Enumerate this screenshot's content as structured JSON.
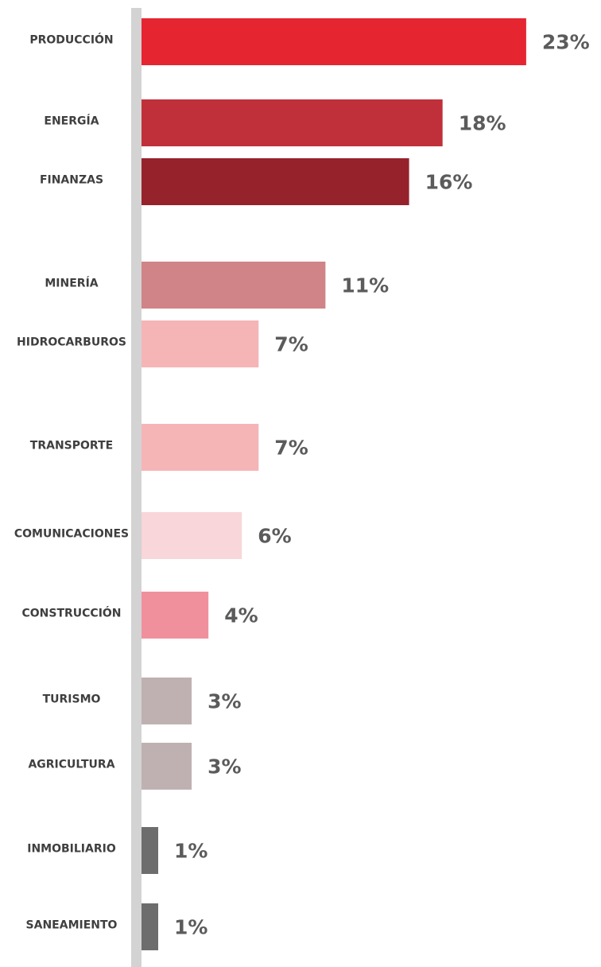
{
  "chart_data": {
    "type": "bar",
    "orientation": "horizontal",
    "title": "",
    "xlabel": "",
    "ylabel": "",
    "value_suffix": "%",
    "xlim": [
      0,
      23
    ],
    "grid": false,
    "categories": [
      "PRODUCCIÓN",
      "ENERGÍA",
      "FINANZAS",
      "MINERÍA",
      "HIDROCARBUROS",
      "TRANSPORTE",
      "COMUNICACIONES",
      "CONSTRUCCIÓN",
      "TURISMO",
      "AGRICULTURA",
      "INMOBILIARIO",
      "SANEAMIENTO"
    ],
    "values": [
      23,
      18,
      16,
      11,
      7,
      7,
      6,
      4,
      3,
      3,
      1,
      1
    ],
    "value_labels": [
      "23%",
      "18%",
      "16%",
      "11%",
      "7%",
      "7%",
      "6%",
      "4%",
      "3%",
      "3%",
      "1%",
      "1%"
    ],
    "bar_colors": [
      "#e52631",
      "#c0303a",
      "#96222b",
      "#d08487",
      "#f5b5b7",
      "#f5b5b7",
      "#f8d6da",
      "#f0909c",
      "#bfb1b2",
      "#bfb1b2",
      "#6d6d6d",
      "#6d6d6d"
    ],
    "axis_color": "#d3d3d3"
  }
}
